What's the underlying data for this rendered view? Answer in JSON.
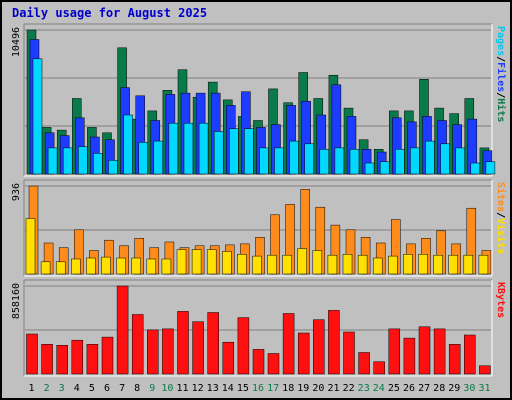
{
  "title": "Daily usage for August 2025",
  "colors": {
    "hits": "#0a7a4a",
    "files": "#1e3cff",
    "pages": "#00d8ff",
    "visits": "#ff8c1a",
    "sites": "#ffe000",
    "kbytes": "#ff1010",
    "weekday_label": "#000000",
    "weekend_label": "#0a7a4a",
    "label_hits": "#0a7a4a",
    "label_files": "#1e3cff",
    "label_pages": "#00c8f0",
    "label_visits": "#ff8c1a",
    "label_sites": "#ffe000",
    "label_kbytes": "#ff1010",
    "sep": "#000000"
  },
  "chart_data": [
    {
      "type": "bar",
      "panel": "hits-files-pages",
      "ymax_label": "10496",
      "ylim": [
        0,
        10496
      ],
      "legend": [
        {
          "name": "Pages",
          "key": "label_pages"
        },
        {
          "name": "/",
          "key": "sep"
        },
        {
          "name": "Files",
          "key": "label_files"
        },
        {
          "name": "/",
          "key": "sep"
        },
        {
          "name": "Hits",
          "key": "label_hits"
        }
      ],
      "series": [
        {
          "name": "Hits",
          "values": [
            10496,
            3400,
            3200,
            5500,
            3400,
            3000,
            9200,
            4000,
            4600,
            6100,
            7600,
            5600,
            6700,
            5400,
            4200,
            3900,
            6200,
            5200,
            7400,
            5500,
            7200,
            4800,
            2500,
            1800,
            4600,
            4600,
            6900,
            4800,
            4400,
            5500,
            1900
          ]
        },
        {
          "name": "Files",
          "values": [
            9800,
            3000,
            2800,
            4100,
            2700,
            2500,
            6300,
            5700,
            3900,
            5800,
            5900,
            5900,
            5900,
            5000,
            6000,
            3400,
            3600,
            5000,
            5300,
            4300,
            6500,
            4200,
            1800,
            1600,
            4100,
            3800,
            4200,
            3900,
            3600,
            4000,
            1700
          ]
        },
        {
          "name": "Pages",
          "values": [
            8400,
            1900,
            1900,
            2000,
            1500,
            1000,
            4300,
            2300,
            2400,
            3700,
            3700,
            3700,
            3100,
            3300,
            3300,
            1900,
            1900,
            2400,
            2200,
            1800,
            1900,
            1800,
            800,
            900,
            1800,
            1900,
            2400,
            2200,
            1900,
            800,
            900
          ]
        }
      ]
    },
    {
      "type": "bar",
      "panel": "visits-sites",
      "ymax_label": "936",
      "ylim": [
        0,
        936
      ],
      "legend": [
        {
          "name": "Sites",
          "key": "label_visits"
        },
        {
          "name": "/",
          "key": "sep"
        },
        {
          "name": "Visits",
          "key": "label_sites"
        }
      ],
      "series": [
        {
          "name": "Visits",
          "values": [
            936,
            330,
            280,
            470,
            250,
            360,
            300,
            380,
            280,
            340,
            280,
            300,
            300,
            310,
            320,
            390,
            630,
            740,
            900,
            710,
            520,
            470,
            390,
            330,
            580,
            320,
            380,
            460,
            320,
            700,
            250
          ]
        },
        {
          "name": "Sites",
          "values": [
            590,
            130,
            130,
            160,
            170,
            180,
            170,
            170,
            160,
            160,
            260,
            260,
            260,
            240,
            210,
            190,
            200,
            200,
            270,
            250,
            200,
            210,
            200,
            170,
            190,
            210,
            210,
            200,
            200,
            200,
            200
          ]
        }
      ]
    },
    {
      "type": "bar",
      "panel": "kbytes",
      "ymax_label": "858160",
      "ylim": [
        0,
        858160
      ],
      "legend": [
        {
          "name": "KBytes",
          "key": "label_kbytes"
        }
      ],
      "series": [
        {
          "name": "KBytes",
          "values": [
            390000,
            290000,
            280000,
            330000,
            290000,
            360000,
            858160,
            580000,
            430000,
            440000,
            610000,
            510000,
            600000,
            310000,
            550000,
            240000,
            200000,
            590000,
            400000,
            530000,
            620000,
            410000,
            210000,
            120000,
            440000,
            350000,
            460000,
            440000,
            290000,
            380000,
            80000
          ]
        }
      ]
    }
  ],
  "days": [
    {
      "label": "1",
      "weekend": false
    },
    {
      "label": "2",
      "weekend": true
    },
    {
      "label": "3",
      "weekend": true
    },
    {
      "label": "4",
      "weekend": false
    },
    {
      "label": "5",
      "weekend": false
    },
    {
      "label": "6",
      "weekend": false
    },
    {
      "label": "7",
      "weekend": false
    },
    {
      "label": "8",
      "weekend": false
    },
    {
      "label": "9",
      "weekend": true
    },
    {
      "label": "10",
      "weekend": true
    },
    {
      "label": "11",
      "weekend": false
    },
    {
      "label": "12",
      "weekend": false
    },
    {
      "label": "13",
      "weekend": false
    },
    {
      "label": "14",
      "weekend": false
    },
    {
      "label": "15",
      "weekend": false
    },
    {
      "label": "16",
      "weekend": true
    },
    {
      "label": "17",
      "weekend": true
    },
    {
      "label": "18",
      "weekend": false
    },
    {
      "label": "19",
      "weekend": false
    },
    {
      "label": "20",
      "weekend": false
    },
    {
      "label": "21",
      "weekend": false
    },
    {
      "label": "22",
      "weekend": false
    },
    {
      "label": "23",
      "weekend": true
    },
    {
      "label": "24",
      "weekend": true
    },
    {
      "label": "25",
      "weekend": false
    },
    {
      "label": "26",
      "weekend": false
    },
    {
      "label": "27",
      "weekend": false
    },
    {
      "label": "28",
      "weekend": false
    },
    {
      "label": "29",
      "weekend": false
    },
    {
      "label": "30",
      "weekend": true
    },
    {
      "label": "31",
      "weekend": true
    }
  ]
}
